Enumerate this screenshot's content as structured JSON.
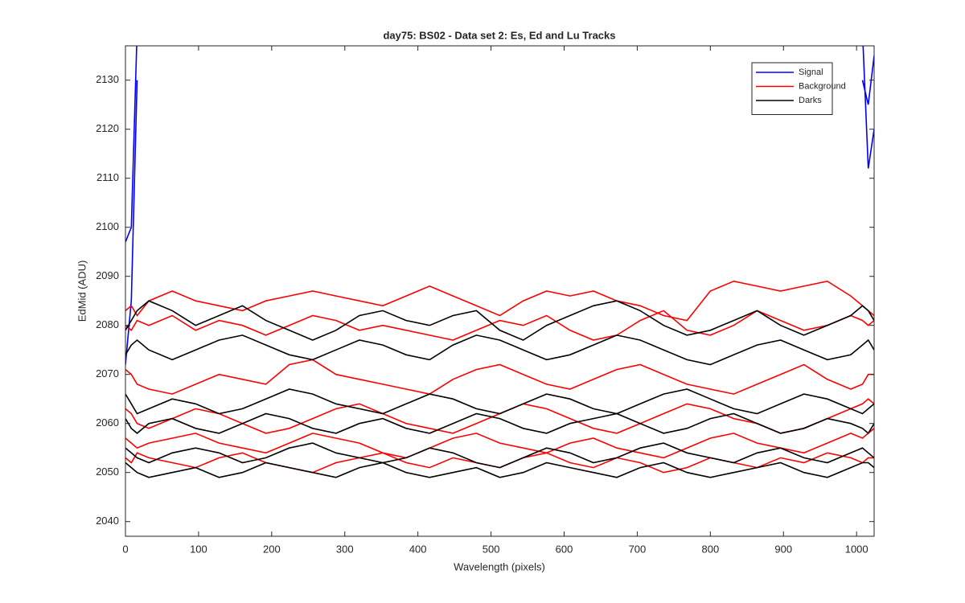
{
  "chart_data": {
    "type": "line",
    "title": "day75: BS02 - Data set 2: Es, Ed and Lu Tracks",
    "x_label": "Wavelength (pixels)",
    "y_label": "EdMid (ADU)",
    "xlim": [
      0,
      1024
    ],
    "ylim": [
      2037,
      2137
    ],
    "xticks": [
      0,
      100,
      200,
      300,
      400,
      500,
      600,
      700,
      800,
      900,
      1000
    ],
    "yticks": [
      2040,
      2050,
      2060,
      2070,
      2080,
      2090,
      2100,
      2110,
      2120,
      2130
    ],
    "legend": "upper right",
    "x": [
      0,
      8,
      16,
      32,
      64,
      96,
      128,
      160,
      192,
      224,
      256,
      288,
      320,
      352,
      384,
      416,
      448,
      480,
      512,
      544,
      576,
      608,
      640,
      672,
      704,
      736,
      768,
      800,
      832,
      864,
      896,
      928,
      960,
      992,
      1008,
      1016,
      1024
    ],
    "series": [
      {
        "name": "Signal",
        "color": "#0000ff",
        "values": [
          [
            2097,
            2100,
            2140,
            null,
            null,
            null,
            null,
            null,
            null,
            null,
            null,
            null,
            null,
            null,
            null,
            null,
            null,
            null,
            null,
            null,
            null,
            null,
            null,
            null,
            null,
            null,
            null,
            null,
            null,
            null,
            null,
            null,
            null,
            null,
            2140,
            2112,
            2120
          ],
          [
            2072,
            2085,
            2130,
            null,
            null,
            null,
            null,
            null,
            null,
            null,
            null,
            null,
            null,
            null,
            null,
            null,
            null,
            null,
            null,
            null,
            null,
            null,
            null,
            null,
            null,
            null,
            null,
            null,
            null,
            null,
            null,
            null,
            null,
            null,
            2130,
            2125,
            2135
          ]
        ]
      },
      {
        "name": "Background",
        "color": "#ff0000",
        "values": [
          [
            2083,
            2084,
            2082,
            2085,
            2087,
            2085,
            2084,
            2083,
            2085,
            2086,
            2087,
            2086,
            2085,
            2084,
            2086,
            2088,
            2086,
            2084,
            2082,
            2085,
            2087,
            2086,
            2087,
            2085,
            2084,
            2082,
            2081,
            2087,
            2089,
            2088,
            2087,
            2088,
            2089,
            2086,
            2084,
            2083,
            2082
          ],
          [
            2080,
            2079,
            2081,
            2080,
            2082,
            2079,
            2081,
            2080,
            2078,
            2080,
            2082,
            2081,
            2079,
            2080,
            2079,
            2078,
            2077,
            2079,
            2081,
            2080,
            2082,
            2079,
            2077,
            2078,
            2081,
            2083,
            2079,
            2078,
            2080,
            2083,
            2081,
            2079,
            2080,
            2082,
            2081,
            2080,
            2081
          ],
          [
            2071,
            2070,
            2068,
            2067,
            2066,
            2068,
            2070,
            2069,
            2068,
            2072,
            2073,
            2070,
            2069,
            2068,
            2067,
            2066,
            2069,
            2071,
            2072,
            2070,
            2068,
            2067,
            2069,
            2071,
            2072,
            2070,
            2068,
            2067,
            2066,
            2068,
            2070,
            2072,
            2069,
            2067,
            2068,
            2070,
            2070
          ],
          [
            2063,
            2062,
            2060,
            2059,
            2061,
            2063,
            2062,
            2060,
            2058,
            2059,
            2061,
            2063,
            2064,
            2062,
            2060,
            2059,
            2058,
            2060,
            2062,
            2064,
            2063,
            2061,
            2059,
            2058,
            2060,
            2062,
            2064,
            2063,
            2061,
            2060,
            2058,
            2059,
            2061,
            2063,
            2064,
            2065,
            2064
          ],
          [
            2057,
            2056,
            2055,
            2056,
            2057,
            2058,
            2056,
            2055,
            2054,
            2056,
            2058,
            2057,
            2056,
            2054,
            2053,
            2055,
            2057,
            2058,
            2056,
            2055,
            2054,
            2056,
            2057,
            2055,
            2054,
            2053,
            2055,
            2057,
            2058,
            2056,
            2055,
            2054,
            2056,
            2058,
            2057,
            2058,
            2059
          ],
          [
            2053,
            2052,
            2054,
            2053,
            2052,
            2051,
            2053,
            2054,
            2052,
            2051,
            2050,
            2052,
            2053,
            2054,
            2052,
            2051,
            2053,
            2052,
            2051,
            2053,
            2054,
            2052,
            2051,
            2053,
            2052,
            2050,
            2051,
            2053,
            2052,
            2051,
            2053,
            2052,
            2054,
            2053,
            2052,
            2053,
            2053
          ]
        ]
      },
      {
        "name": "Darks",
        "color": "#000000",
        "values": [
          [
            2079,
            2081,
            2083,
            2085,
            2083,
            2080,
            2082,
            2084,
            2081,
            2079,
            2077,
            2079,
            2082,
            2083,
            2081,
            2080,
            2082,
            2083,
            2079,
            2077,
            2080,
            2082,
            2084,
            2085,
            2083,
            2080,
            2078,
            2079,
            2081,
            2083,
            2080,
            2078,
            2080,
            2082,
            2084,
            2083,
            2081
          ],
          [
            2074,
            2076,
            2077,
            2075,
            2073,
            2075,
            2077,
            2078,
            2076,
            2074,
            2073,
            2075,
            2077,
            2076,
            2074,
            2073,
            2076,
            2078,
            2077,
            2075,
            2073,
            2074,
            2076,
            2078,
            2077,
            2075,
            2073,
            2072,
            2074,
            2076,
            2077,
            2075,
            2073,
            2074,
            2076,
            2077,
            2075
          ],
          [
            2066,
            2064,
            2062,
            2063,
            2065,
            2064,
            2062,
            2063,
            2065,
            2067,
            2066,
            2064,
            2063,
            2062,
            2064,
            2066,
            2065,
            2063,
            2062,
            2064,
            2066,
            2065,
            2063,
            2062,
            2064,
            2066,
            2067,
            2065,
            2063,
            2062,
            2064,
            2066,
            2065,
            2063,
            2062,
            2063,
            2064
          ],
          [
            2061,
            2059,
            2058,
            2060,
            2061,
            2059,
            2058,
            2060,
            2062,
            2061,
            2059,
            2058,
            2060,
            2061,
            2059,
            2058,
            2060,
            2062,
            2061,
            2059,
            2058,
            2060,
            2061,
            2062,
            2060,
            2058,
            2059,
            2061,
            2062,
            2060,
            2058,
            2059,
            2061,
            2060,
            2059,
            2058,
            2060
          ],
          [
            2055,
            2054,
            2053,
            2052,
            2054,
            2055,
            2054,
            2052,
            2053,
            2055,
            2056,
            2054,
            2053,
            2052,
            2053,
            2055,
            2054,
            2052,
            2051,
            2053,
            2055,
            2054,
            2052,
            2053,
            2055,
            2056,
            2054,
            2053,
            2052,
            2054,
            2055,
            2053,
            2052,
            2054,
            2055,
            2054,
            2053
          ],
          [
            2052,
            2051,
            2050,
            2049,
            2050,
            2051,
            2049,
            2050,
            2052,
            2051,
            2050,
            2049,
            2051,
            2052,
            2050,
            2049,
            2050,
            2051,
            2049,
            2050,
            2052,
            2051,
            2050,
            2049,
            2051,
            2052,
            2050,
            2049,
            2050,
            2051,
            2052,
            2050,
            2049,
            2051,
            2052,
            2052,
            2051
          ]
        ]
      }
    ]
  }
}
